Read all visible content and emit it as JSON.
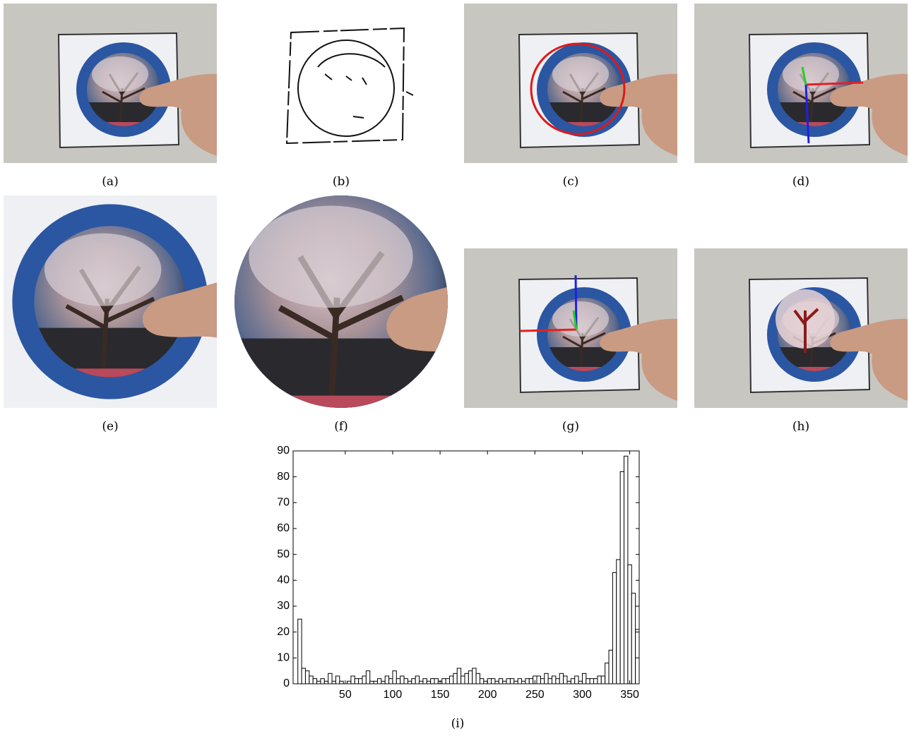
{
  "captions": [
    "(a)",
    "(b)",
    "(c)",
    "(d)",
    "(e)",
    "(f)",
    "(g)",
    "(h)",
    "(i)"
  ],
  "chart_data": {
    "type": "histogram",
    "bins": [
      0,
      4,
      8,
      12,
      16,
      20,
      24,
      28,
      32,
      36,
      40,
      44,
      48,
      52,
      56,
      60,
      64,
      68,
      72,
      76,
      80,
      84,
      88,
      92,
      96,
      100,
      104,
      108,
      112,
      116,
      120,
      124,
      128,
      132,
      136,
      140,
      144,
      148,
      152,
      156,
      160,
      164,
      168,
      172,
      176,
      180,
      184,
      188,
      192,
      196,
      200,
      204,
      208,
      212,
      216,
      220,
      224,
      228,
      232,
      236,
      240,
      244,
      248,
      252,
      256,
      260,
      264,
      268,
      272,
      276,
      280,
      284,
      288,
      292,
      296,
      300,
      304,
      308,
      312,
      316,
      320,
      324,
      328,
      332,
      336,
      340,
      344,
      348,
      352,
      356,
      360
    ],
    "values": [
      25,
      6,
      5,
      3,
      2,
      1,
      2,
      1,
      4,
      1,
      3,
      1,
      0,
      1,
      3,
      2,
      2,
      3,
      5,
      1,
      1,
      2,
      1,
      3,
      2,
      5,
      2,
      3,
      2,
      1,
      2,
      3,
      1,
      2,
      1,
      2,
      2,
      1,
      2,
      2,
      3,
      4,
      6,
      3,
      4,
      5,
      6,
      4,
      2,
      1,
      2,
      2,
      1,
      2,
      1,
      2,
      2,
      1,
      2,
      1,
      2,
      2,
      3,
      3,
      2,
      4,
      2,
      3,
      2,
      4,
      3,
      1,
      2,
      3,
      1,
      4,
      2,
      2,
      2,
      3,
      3,
      8,
      13,
      43,
      48,
      82,
      88,
      46,
      35,
      21
    ],
    "color": "#ffffff",
    "xlim": [
      -5,
      360
    ],
    "ylim": [
      0,
      90
    ],
    "xticks": [
      50,
      100,
      150,
      200,
      250,
      300,
      350
    ],
    "yticks": [
      0,
      10,
      20,
      30,
      40,
      50,
      60,
      70,
      80,
      90
    ]
  }
}
